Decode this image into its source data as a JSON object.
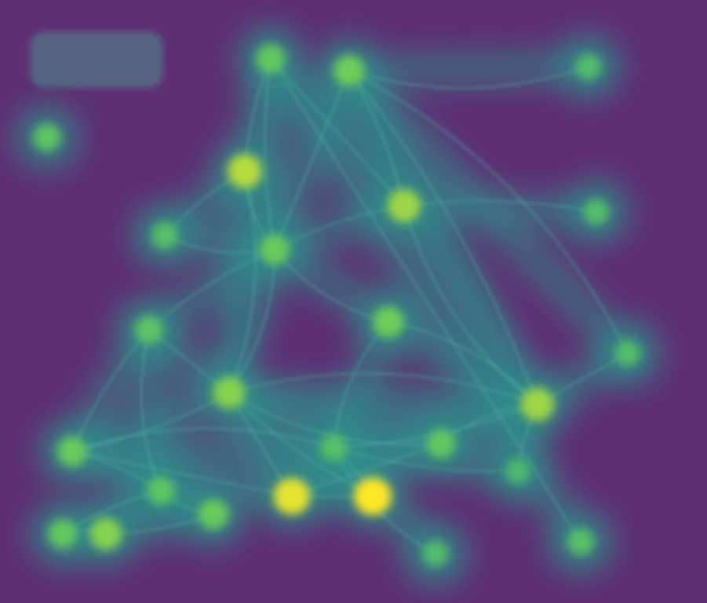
{
  "title": "",
  "logo": {
    "title": "",
    "subtitle": ""
  },
  "colors": {
    "background": "#5e2f73",
    "halo": "#2f8f8a",
    "link": "#52b3a0",
    "node_low": "#1f9e89",
    "node_mid": "#6ece58",
    "node_high": "#fde725"
  },
  "nodes": [
    {
      "id": "n01",
      "intensity": 0.55
    },
    {
      "id": "n02",
      "intensity": 0.6
    },
    {
      "id": "n03",
      "intensity": 0.85
    },
    {
      "id": "n04",
      "intensity": 0.7
    },
    {
      "id": "n05",
      "intensity": 0.8
    },
    {
      "id": "n06",
      "intensity": 0.65
    },
    {
      "id": "n07",
      "intensity": 0.55
    },
    {
      "id": "n08",
      "intensity": 0.7
    },
    {
      "id": "n09",
      "intensity": 0.75
    },
    {
      "id": "n10",
      "intensity": 0.65
    },
    {
      "id": "n11",
      "intensity": 0.8
    },
    {
      "id": "n12",
      "intensity": 0.6
    },
    {
      "id": "n13",
      "intensity": 0.55
    },
    {
      "id": "n14",
      "intensity": 0.95
    },
    {
      "id": "n15",
      "intensity": 1.0
    },
    {
      "id": "n16",
      "intensity": 0.5
    },
    {
      "id": "n17",
      "intensity": 0.6
    },
    {
      "id": "n18",
      "intensity": 0.65
    },
    {
      "id": "n19",
      "intensity": 0.75
    },
    {
      "id": "n20",
      "intensity": 0.45
    },
    {
      "id": "n21",
      "intensity": 0.5
    },
    {
      "id": "n22",
      "intensity": 0.45
    },
    {
      "id": "n23",
      "intensity": 0.5
    },
    {
      "id": "n24",
      "intensity": 0.45
    },
    {
      "id": "n25",
      "intensity": 0.4
    },
    {
      "id": "n26",
      "intensity": 0.45
    }
  ],
  "links": [
    [
      "n06",
      "n03"
    ],
    [
      "n06",
      "n05"
    ],
    [
      "n06",
      "n04"
    ],
    [
      "n06",
      "n07"
    ],
    [
      "n06",
      "n08"
    ],
    [
      "n06",
      "n09"
    ],
    [
      "n06",
      "n02"
    ],
    [
      "n05",
      "n02"
    ],
    [
      "n05",
      "n04"
    ],
    [
      "n05",
      "n11"
    ],
    [
      "n03",
      "n09"
    ],
    [
      "n03",
      "n02"
    ],
    [
      "n07",
      "n09"
    ],
    [
      "n07",
      "n10"
    ],
    [
      "n07",
      "n13"
    ],
    [
      "n09",
      "n11"
    ],
    [
      "n09",
      "n10"
    ],
    [
      "n09",
      "n14"
    ],
    [
      "n09",
      "n15"
    ],
    [
      "n09",
      "n12"
    ],
    [
      "n08",
      "n11"
    ],
    [
      "n11",
      "n16"
    ],
    [
      "n11",
      "n26"
    ],
    [
      "n11",
      "n25"
    ],
    [
      "n11",
      "n12"
    ],
    [
      "n10",
      "n16"
    ],
    [
      "n10",
      "n13"
    ],
    [
      "n10",
      "n14"
    ],
    [
      "n13",
      "n17"
    ],
    [
      "n13",
      "n18"
    ],
    [
      "n17",
      "n19"
    ],
    [
      "n18",
      "n19"
    ],
    [
      "n14",
      "n15"
    ],
    [
      "n15",
      "n16"
    ],
    [
      "n04",
      "n22"
    ],
    [
      "n04",
      "n26"
    ],
    [
      "n05",
      "n24"
    ],
    [
      "n02",
      "n23"
    ],
    [
      "n03",
      "n21"
    ],
    [
      "n16",
      "n20"
    ],
    [
      "n06",
      "n21"
    ],
    [
      "n04",
      "n11"
    ],
    [
      "n12",
      "n14"
    ],
    [
      "n16",
      "n25"
    ],
    [
      "n08",
      "n16"
    ]
  ]
}
